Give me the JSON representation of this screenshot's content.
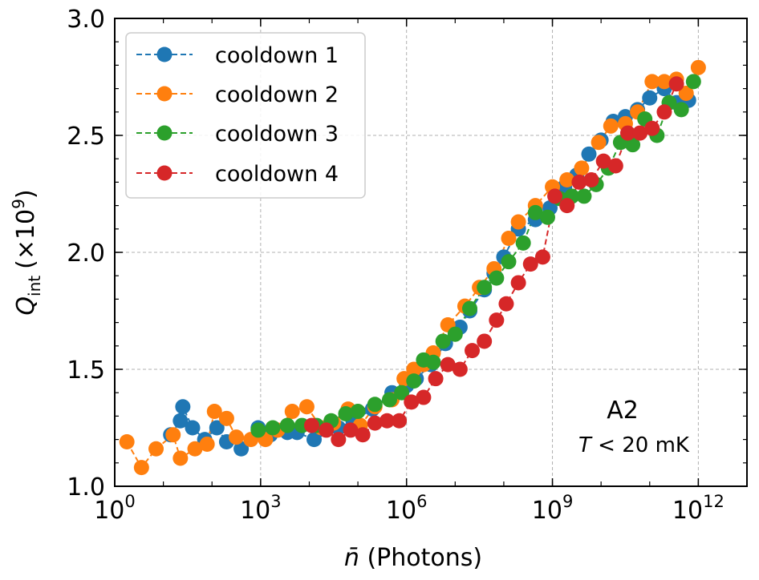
{
  "chart_data": {
    "type": "scatter",
    "title": "",
    "xlabel": "n̄ (Photons)",
    "ylabel": "Q_int (×10^9)",
    "xscale": "log10",
    "xlim_log10": [
      0,
      13
    ],
    "ylim": [
      1.0,
      3.0
    ],
    "grid": true,
    "legend_position": "top-left",
    "x_ticks": [
      {
        "value": 0,
        "base": "10",
        "exp": "0"
      },
      {
        "value": 3,
        "base": "10",
        "exp": "3"
      },
      {
        "value": 6,
        "base": "10",
        "exp": "6"
      },
      {
        "value": 9,
        "base": "10",
        "exp": "9"
      },
      {
        "value": 12,
        "base": "10",
        "exp": "12"
      }
    ],
    "y_ticks": [
      {
        "value": 1.0,
        "label": "1.0"
      },
      {
        "value": 1.5,
        "label": "1.5"
      },
      {
        "value": 2.0,
        "label": "2.0"
      },
      {
        "value": 2.5,
        "label": "2.5"
      },
      {
        "value": 3.0,
        "label": "3.0"
      }
    ],
    "ylabel_parts": {
      "q": "Q",
      "sub": "int",
      "mult": "(×10",
      "exp": "9",
      "close": ")"
    },
    "xlabel_parts": {
      "nbar": "n̄",
      "rest": " (Photons)"
    },
    "annotations": [
      {
        "text": "A2"
      },
      {
        "text_parts": {
          "T": "T",
          "lt": " < ",
          "val": "20 mK"
        }
      }
    ],
    "series": [
      {
        "name": "cooldown 1",
        "color": "#1f77b4",
        "points": [
          [
            1.15,
            1.22
          ],
          [
            1.35,
            1.28
          ],
          [
            1.4,
            1.34
          ],
          [
            1.6,
            1.25
          ],
          [
            1.85,
            1.2
          ],
          [
            2.1,
            1.25
          ],
          [
            2.3,
            1.19
          ],
          [
            2.6,
            1.16
          ],
          [
            2.95,
            1.25
          ],
          [
            3.2,
            1.22
          ],
          [
            3.55,
            1.23
          ],
          [
            3.75,
            1.23
          ],
          [
            4.1,
            1.2
          ],
          [
            4.6,
            1.25
          ],
          [
            4.9,
            1.28
          ],
          [
            5.3,
            1.33
          ],
          [
            5.7,
            1.4
          ],
          [
            6.0,
            1.43
          ],
          [
            6.2,
            1.46
          ],
          [
            6.5,
            1.52
          ],
          [
            6.8,
            1.61
          ],
          [
            7.1,
            1.68
          ],
          [
            7.3,
            1.75
          ],
          [
            7.6,
            1.84
          ],
          [
            7.8,
            1.91
          ],
          [
            8.0,
            1.98
          ],
          [
            8.3,
            2.1
          ],
          [
            8.65,
            2.14
          ],
          [
            8.95,
            2.19
          ],
          [
            9.25,
            2.28
          ],
          [
            9.5,
            2.33
          ],
          [
            9.75,
            2.42
          ],
          [
            10.0,
            2.48
          ],
          [
            10.25,
            2.56
          ],
          [
            10.5,
            2.58
          ],
          [
            10.75,
            2.61
          ],
          [
            11.0,
            2.66
          ],
          [
            11.3,
            2.7
          ],
          [
            11.55,
            2.64
          ],
          [
            11.8,
            2.65
          ]
        ]
      },
      {
        "name": "cooldown 2",
        "color": "#ff7f0e",
        "points": [
          [
            0.25,
            1.19
          ],
          [
            0.55,
            1.08
          ],
          [
            0.85,
            1.16
          ],
          [
            1.2,
            1.22
          ],
          [
            1.35,
            1.12
          ],
          [
            1.65,
            1.16
          ],
          [
            1.9,
            1.18
          ],
          [
            2.05,
            1.32
          ],
          [
            2.3,
            1.29
          ],
          [
            2.5,
            1.21
          ],
          [
            2.8,
            1.2
          ],
          [
            3.1,
            1.2
          ],
          [
            3.35,
            1.24
          ],
          [
            3.65,
            1.32
          ],
          [
            3.95,
            1.34
          ],
          [
            4.25,
            1.25
          ],
          [
            4.5,
            1.27
          ],
          [
            4.8,
            1.33
          ],
          [
            5.05,
            1.26
          ],
          [
            5.35,
            1.34
          ],
          [
            5.7,
            1.37
          ],
          [
            5.95,
            1.46
          ],
          [
            6.15,
            1.5
          ],
          [
            6.35,
            1.52
          ],
          [
            6.55,
            1.57
          ],
          [
            6.85,
            1.69
          ],
          [
            7.2,
            1.77
          ],
          [
            7.5,
            1.85
          ],
          [
            7.8,
            1.93
          ],
          [
            8.1,
            2.06
          ],
          [
            8.3,
            2.13
          ],
          [
            8.65,
            2.2
          ],
          [
            9.0,
            2.28
          ],
          [
            9.3,
            2.31
          ],
          [
            9.6,
            2.36
          ],
          [
            9.95,
            2.47
          ],
          [
            10.2,
            2.54
          ],
          [
            10.5,
            2.55
          ],
          [
            10.75,
            2.6
          ],
          [
            11.05,
            2.73
          ],
          [
            11.3,
            2.73
          ],
          [
            11.55,
            2.74
          ],
          [
            11.75,
            2.68
          ],
          [
            12.0,
            2.79
          ]
        ]
      },
      {
        "name": "cooldown 3",
        "color": "#2ca02c",
        "points": [
          [
            2.95,
            1.24
          ],
          [
            3.25,
            1.25
          ],
          [
            3.55,
            1.26
          ],
          [
            3.85,
            1.26
          ],
          [
            4.15,
            1.26
          ],
          [
            4.45,
            1.28
          ],
          [
            4.75,
            1.31
          ],
          [
            5.0,
            1.32
          ],
          [
            5.35,
            1.35
          ],
          [
            5.65,
            1.37
          ],
          [
            5.9,
            1.4
          ],
          [
            6.15,
            1.45
          ],
          [
            6.35,
            1.54
          ],
          [
            6.55,
            1.53
          ],
          [
            6.75,
            1.62
          ],
          [
            7.0,
            1.65
          ],
          [
            7.3,
            1.76
          ],
          [
            7.6,
            1.85
          ],
          [
            7.85,
            1.89
          ],
          [
            8.1,
            1.96
          ],
          [
            8.4,
            2.04
          ],
          [
            8.65,
            2.17
          ],
          [
            8.9,
            2.15
          ],
          [
            9.15,
            2.23
          ],
          [
            9.4,
            2.24
          ],
          [
            9.65,
            2.24
          ],
          [
            9.9,
            2.29
          ],
          [
            10.15,
            2.36
          ],
          [
            10.4,
            2.47
          ],
          [
            10.65,
            2.46
          ],
          [
            10.9,
            2.57
          ],
          [
            11.15,
            2.5
          ],
          [
            11.4,
            2.64
          ],
          [
            11.65,
            2.61
          ],
          [
            11.9,
            2.73
          ]
        ]
      },
      {
        "name": "cooldown 4",
        "color": "#d62728",
        "points": [
          [
            4.05,
            1.26
          ],
          [
            4.35,
            1.24
          ],
          [
            4.6,
            1.2
          ],
          [
            4.85,
            1.24
          ],
          [
            5.1,
            1.22
          ],
          [
            5.35,
            1.27
          ],
          [
            5.6,
            1.28
          ],
          [
            5.85,
            1.28
          ],
          [
            6.1,
            1.36
          ],
          [
            6.35,
            1.38
          ],
          [
            6.6,
            1.46
          ],
          [
            6.85,
            1.52
          ],
          [
            7.1,
            1.5
          ],
          [
            7.35,
            1.58
          ],
          [
            7.6,
            1.62
          ],
          [
            7.85,
            1.71
          ],
          [
            8.05,
            1.78
          ],
          [
            8.3,
            1.87
          ],
          [
            8.55,
            1.95
          ],
          [
            8.8,
            1.98
          ],
          [
            9.05,
            2.24
          ],
          [
            9.3,
            2.2
          ],
          [
            9.55,
            2.3
          ],
          [
            9.8,
            2.31
          ],
          [
            10.05,
            2.39
          ],
          [
            10.3,
            2.37
          ],
          [
            10.55,
            2.51
          ],
          [
            10.8,
            2.51
          ],
          [
            11.05,
            2.53
          ],
          [
            11.3,
            2.6
          ],
          [
            11.55,
            2.72
          ]
        ]
      }
    ]
  }
}
